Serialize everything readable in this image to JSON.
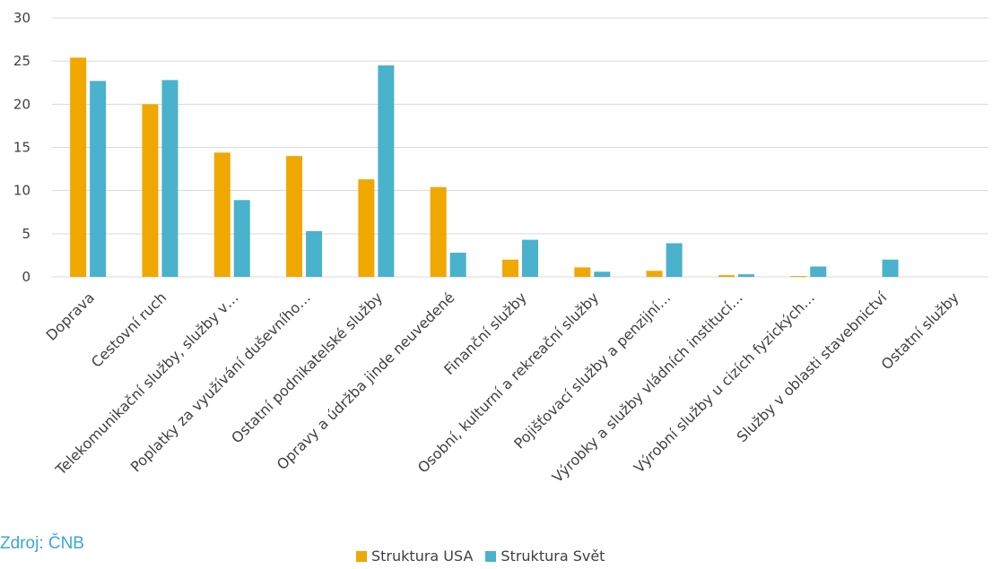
{
  "source_note": "Zdroj: ČNB",
  "chart_data": {
    "type": "bar",
    "categories": [
      "Doprava",
      "Cestovní ruch",
      "Telekomunikační služby, služby v…",
      "Poplatky za využívání duševního…",
      "Ostatní podnikatelské služby",
      "Opravy a údržba jinde neuvedené",
      "Finanční služby",
      "Osobní, kulturní a rekreační služby",
      "Pojišťovací služby a penzijní…",
      "Výrobky a služby vládních institucí…",
      "Výrobní služby u cizích fyzických…",
      "Služby v oblasti stavebnictví",
      "Ostatní služby"
    ],
    "series": [
      {
        "name": "Struktura USA",
        "color": "#f0a800",
        "values": [
          25.4,
          20.0,
          14.4,
          14.0,
          11.3,
          10.4,
          2.0,
          1.1,
          0.7,
          0.2,
          0.1,
          0,
          0
        ]
      },
      {
        "name": "Struktura Svět",
        "color": "#4ab2cc",
        "values": [
          22.7,
          22.8,
          8.9,
          5.3,
          24.5,
          2.8,
          4.3,
          0.6,
          3.9,
          0.3,
          1.2,
          2.0,
          0
        ]
      }
    ],
    "yticks": [
      "0",
      "5",
      "10",
      "15",
      "20",
      "25",
      "30"
    ],
    "ylim": [
      0,
      30
    ],
    "grid": true,
    "legend_position": "bottom"
  }
}
